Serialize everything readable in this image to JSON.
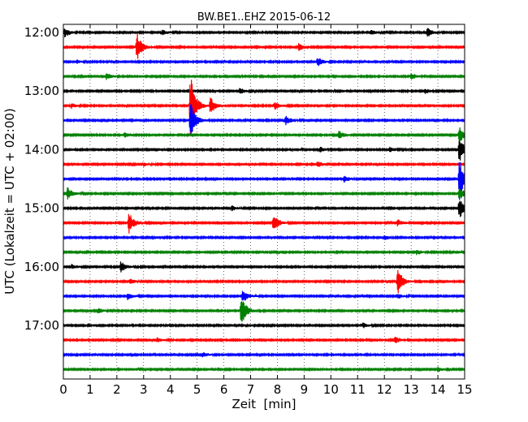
{
  "chart_data": {
    "type": "line",
    "title": "BW.BE1..EHZ 2015-06-12",
    "xlabel": "Zeit  [min]",
    "ylabel": "UTC (Lokalzeit = UTC + 02:00)",
    "xlim": [
      0,
      15
    ],
    "x_ticks": [
      "0",
      "1",
      "2",
      "3",
      "4",
      "5",
      "6",
      "7",
      "8",
      "9",
      "10",
      "11",
      "12",
      "13",
      "14",
      "15"
    ],
    "y_ticks": [
      {
        "label": "12:00",
        "row": 0
      },
      {
        "label": "13:00",
        "row": 4
      },
      {
        "label": "14:00",
        "row": 8
      },
      {
        "label": "15:00",
        "row": 12
      },
      {
        "label": "16:00",
        "row": 16
      },
      {
        "label": "17:00",
        "row": 20
      }
    ],
    "row_minutes": 15,
    "rows_start": "12:00",
    "row_colors": [
      "#000000",
      "#ff0000",
      "#0000ff",
      "#008000"
    ],
    "grid": "x-dotted",
    "series": [
      {
        "row": 0,
        "start": "12:00",
        "noise": 0.9,
        "events": [
          {
            "t": 0.05,
            "amp": 6
          },
          {
            "t": 13.6,
            "amp": 6
          },
          {
            "t": 3.7,
            "amp": 3
          },
          {
            "t": 11.5,
            "amp": 3
          }
        ]
      },
      {
        "row": 1,
        "start": "12:15",
        "noise": 0.9,
        "events": [
          {
            "t": 2.75,
            "amp": 18
          },
          {
            "t": 8.8,
            "amp": 5
          }
        ]
      },
      {
        "row": 2,
        "start": "12:30",
        "noise": 0.9,
        "events": [
          {
            "t": 9.5,
            "amp": 6
          },
          {
            "t": 0.5,
            "amp": 2
          }
        ]
      },
      {
        "row": 3,
        "start": "12:45",
        "noise": 0.9,
        "events": [
          {
            "t": 1.6,
            "amp": 4
          },
          {
            "t": 13.0,
            "amp": 4
          }
        ]
      },
      {
        "row": 4,
        "start": "13:00",
        "noise": 0.9,
        "events": [
          {
            "t": 6.6,
            "amp": 4
          },
          {
            "t": 13.5,
            "amp": 3
          }
        ]
      },
      {
        "row": 5,
        "start": "13:15",
        "noise": 0.9,
        "events": [
          {
            "t": 4.75,
            "amp": 40
          },
          {
            "t": 5.5,
            "amp": 10
          },
          {
            "t": 7.9,
            "amp": 5
          },
          {
            "t": 0.3,
            "amp": 3
          }
        ]
      },
      {
        "row": 6,
        "start": "13:30",
        "noise": 0.9,
        "events": [
          {
            "t": 4.75,
            "amp": 24
          },
          {
            "t": 8.3,
            "amp": 6
          }
        ]
      },
      {
        "row": 7,
        "start": "13:45",
        "noise": 0.9,
        "events": [
          {
            "t": 10.3,
            "amp": 5
          },
          {
            "t": 14.8,
            "amp": 10
          },
          {
            "t": 2.3,
            "amp": 3
          }
        ]
      },
      {
        "row": 8,
        "start": "14:00",
        "noise": 0.9,
        "events": [
          {
            "t": 9.6,
            "amp": 3
          },
          {
            "t": 12.2,
            "amp": 3
          },
          {
            "t": 14.8,
            "amp": 18
          }
        ]
      },
      {
        "row": 9,
        "start": "14:15",
        "noise": 0.9,
        "events": [
          {
            "t": 9.5,
            "amp": 4
          },
          {
            "t": 3.0,
            "amp": 2
          }
        ]
      },
      {
        "row": 10,
        "start": "14:30",
        "noise": 0.9,
        "events": [
          {
            "t": 14.8,
            "amp": 28
          },
          {
            "t": 10.5,
            "amp": 4
          }
        ]
      },
      {
        "row": 11,
        "start": "14:45",
        "noise": 0.9,
        "events": [
          {
            "t": 0.15,
            "amp": 8
          },
          {
            "t": 14.8,
            "amp": 8
          }
        ]
      },
      {
        "row": 12,
        "start": "15:00",
        "noise": 0.9,
        "events": [
          {
            "t": 14.8,
            "amp": 14
          },
          {
            "t": 6.3,
            "amp": 3
          }
        ]
      },
      {
        "row": 13,
        "start": "15:15",
        "noise": 0.9,
        "events": [
          {
            "t": 2.45,
            "amp": 14
          },
          {
            "t": 7.85,
            "amp": 12
          },
          {
            "t": 12.5,
            "amp": 4
          }
        ]
      },
      {
        "row": 14,
        "start": "15:30",
        "noise": 0.9,
        "events": [
          {
            "t": 12.0,
            "amp": 3
          }
        ]
      },
      {
        "row": 15,
        "start": "15:45",
        "noise": 0.9,
        "events": [
          {
            "t": 13.2,
            "amp": 3
          }
        ]
      },
      {
        "row": 16,
        "start": "16:00",
        "noise": 0.9,
        "events": [
          {
            "t": 2.15,
            "amp": 7
          },
          {
            "t": 0.3,
            "amp": 3
          }
        ]
      },
      {
        "row": 17,
        "start": "16:15",
        "noise": 0.9,
        "events": [
          {
            "t": 12.5,
            "amp": 16
          },
          {
            "t": 2.5,
            "amp": 3
          }
        ]
      },
      {
        "row": 18,
        "start": "16:30",
        "noise": 0.9,
        "events": [
          {
            "t": 2.4,
            "amp": 4
          },
          {
            "t": 6.7,
            "amp": 8
          },
          {
            "t": 12.5,
            "amp": 3
          }
        ]
      },
      {
        "row": 19,
        "start": "16:45",
        "noise": 0.9,
        "events": [
          {
            "t": 6.65,
            "amp": 20
          },
          {
            "t": 1.3,
            "amp": 3
          }
        ]
      },
      {
        "row": 20,
        "start": "17:00",
        "noise": 0.9,
        "events": [
          {
            "t": 11.2,
            "amp": 3
          }
        ]
      },
      {
        "row": 21,
        "start": "17:15",
        "noise": 0.9,
        "events": [
          {
            "t": 3.5,
            "amp": 3
          },
          {
            "t": 12.4,
            "amp": 4
          }
        ]
      },
      {
        "row": 22,
        "start": "17:30",
        "noise": 0.9,
        "events": [
          {
            "t": 5.2,
            "amp": 3
          }
        ]
      },
      {
        "row": 23,
        "start": "17:45",
        "noise": 0.9,
        "events": [
          {
            "t": 14.0,
            "amp": 3
          }
        ]
      }
    ]
  }
}
